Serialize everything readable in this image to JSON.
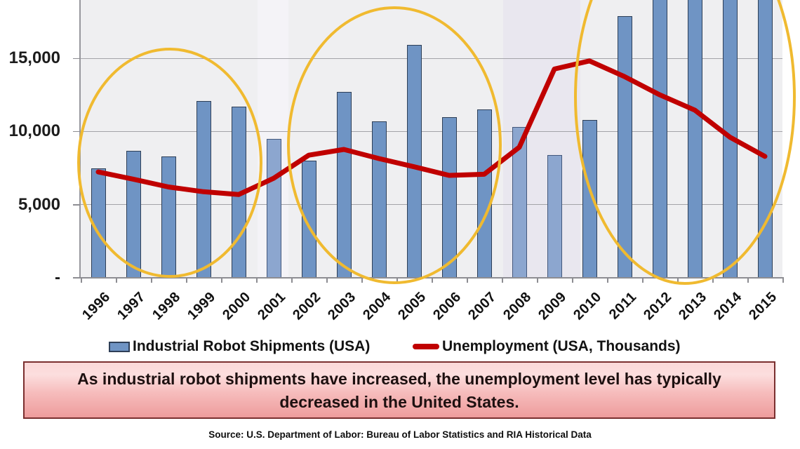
{
  "chart_data": {
    "type": "bar+line",
    "title": "",
    "categories": [
      "1996",
      "1997",
      "1998",
      "1999",
      "2000",
      "2001",
      "2002",
      "2003",
      "2004",
      "2005",
      "2006",
      "2007",
      "2008",
      "2009",
      "2010",
      "2011",
      "2012",
      "2013",
      "2014",
      "2015"
    ],
    "series": [
      {
        "name": "Industrial Robot Shipments (USA)",
        "type": "bar",
        "color": "#6f94c4",
        "values": [
          7500,
          8700,
          8300,
          12100,
          11700,
          9500,
          8000,
          12700,
          10700,
          15900,
          11000,
          11500,
          10300,
          8400,
          10800,
          17900,
          19500,
          19500,
          19500,
          19500
        ]
      },
      {
        "name": "Unemployment (USA, Thousands)",
        "type": "line",
        "color": "#c00000",
        "values": [
          7236,
          6739,
          6210,
          5880,
          5692,
          6801,
          8378,
          8774,
          8149,
          7591,
          7001,
          7078,
          8924,
          14265,
          14825,
          13747,
          12506,
          11460,
          9617,
          8296
        ]
      }
    ],
    "yticks": [
      {
        "label": "-",
        "value": 0
      },
      {
        "label": "5,000",
        "value": 5000
      },
      {
        "label": "10,000",
        "value": 10000
      },
      {
        "label": "15,000",
        "value": 15000
      }
    ],
    "ylim_visible": [
      0,
      19000
    ],
    "grid": "horizontal gridlines on",
    "legend_position": "bottom",
    "bars_clipped_at_top": [
      "2012",
      "2013",
      "2014",
      "2015"
    ],
    "clipped_note": "2012-2015 bars extend above the visible top edge of the image (>= ~19,000); exact values not readable",
    "highlighted_years": [
      "2001",
      "2008",
      "2009"
    ],
    "recession_bands": [
      {
        "from": "2001",
        "to": "2001",
        "color": "#f4f3f7"
      },
      {
        "from": "2008",
        "to": "2009",
        "color": "#e9e7ef"
      }
    ],
    "ellipse_annotations": [
      {
        "years": "1996-2000",
        "color": "#f0ba30"
      },
      {
        "years": "2002-2007",
        "color": "#f0ba30"
      },
      {
        "years": "2011-2015",
        "color": "#f0ba30"
      }
    ],
    "colors": {
      "bar_fill": "#6f94c4",
      "bar_border": "#2e3f57",
      "bar_highlight_fill": "#8ca6cf",
      "line": "#c00000",
      "ellipse": "#f0ba30",
      "plot_background": "#efeff1",
      "gridline": "#a3a3a8"
    }
  },
  "legend": {
    "items": [
      {
        "label": "Industrial Robot Shipments (USA)",
        "swatch": "bar"
      },
      {
        "label": "Unemployment (USA, Thousands)",
        "swatch": "line"
      }
    ]
  },
  "caption": {
    "line1": "As industrial robot shipments have increased, the unemployment level has typically",
    "line2": "decreased in the United States."
  },
  "source": {
    "text": "Source: U.S. Department of Labor: Bureau of Labor Statistics and RIA Historical Data"
  }
}
